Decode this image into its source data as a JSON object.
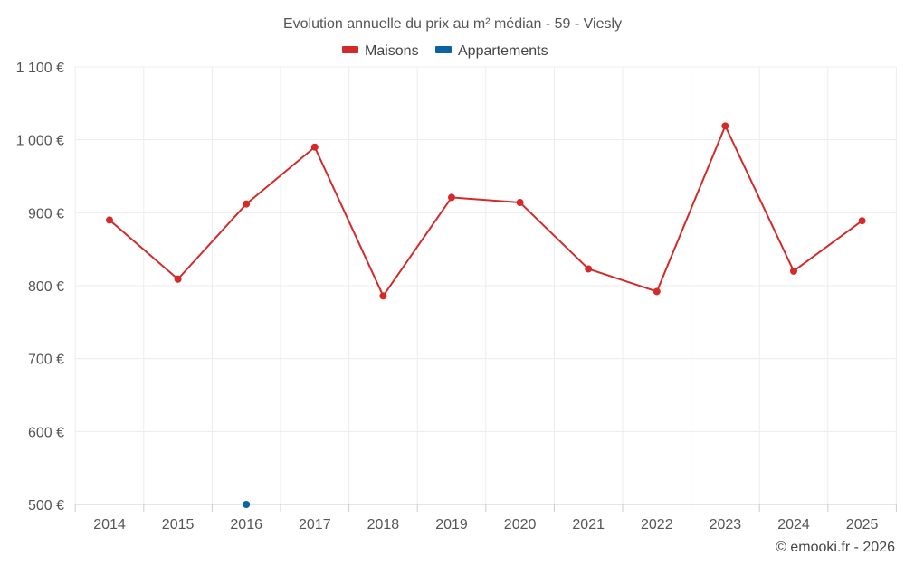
{
  "chart_data": {
    "type": "line",
    "title": "Evolution annuelle du prix au m² médian - 59 - Viesly",
    "categories": [
      "2014",
      "2015",
      "2016",
      "2017",
      "2018",
      "2019",
      "2020",
      "2021",
      "2022",
      "2023",
      "2024",
      "2025"
    ],
    "series": [
      {
        "name": "Maisons",
        "color": "#d42a2a",
        "values": [
          890,
          809,
          912,
          990,
          786,
          921,
          914,
          823,
          792,
          1019,
          820,
          889
        ]
      },
      {
        "name": "Appartements",
        "color": "#0b63a0",
        "values": [
          null,
          null,
          500,
          null,
          null,
          null,
          null,
          null,
          null,
          null,
          null,
          null
        ]
      }
    ],
    "ylim": [
      500,
      1100
    ],
    "yticks": [
      500,
      600,
      700,
      800,
      900,
      1000,
      1100
    ],
    "ytick_labels": [
      "500 €",
      "600 €",
      "700 €",
      "800 €",
      "900 €",
      "1 000 €",
      "1 100 €"
    ],
    "grid": true,
    "legend": "top-center",
    "credit": "© emooki.fr - 2026"
  }
}
